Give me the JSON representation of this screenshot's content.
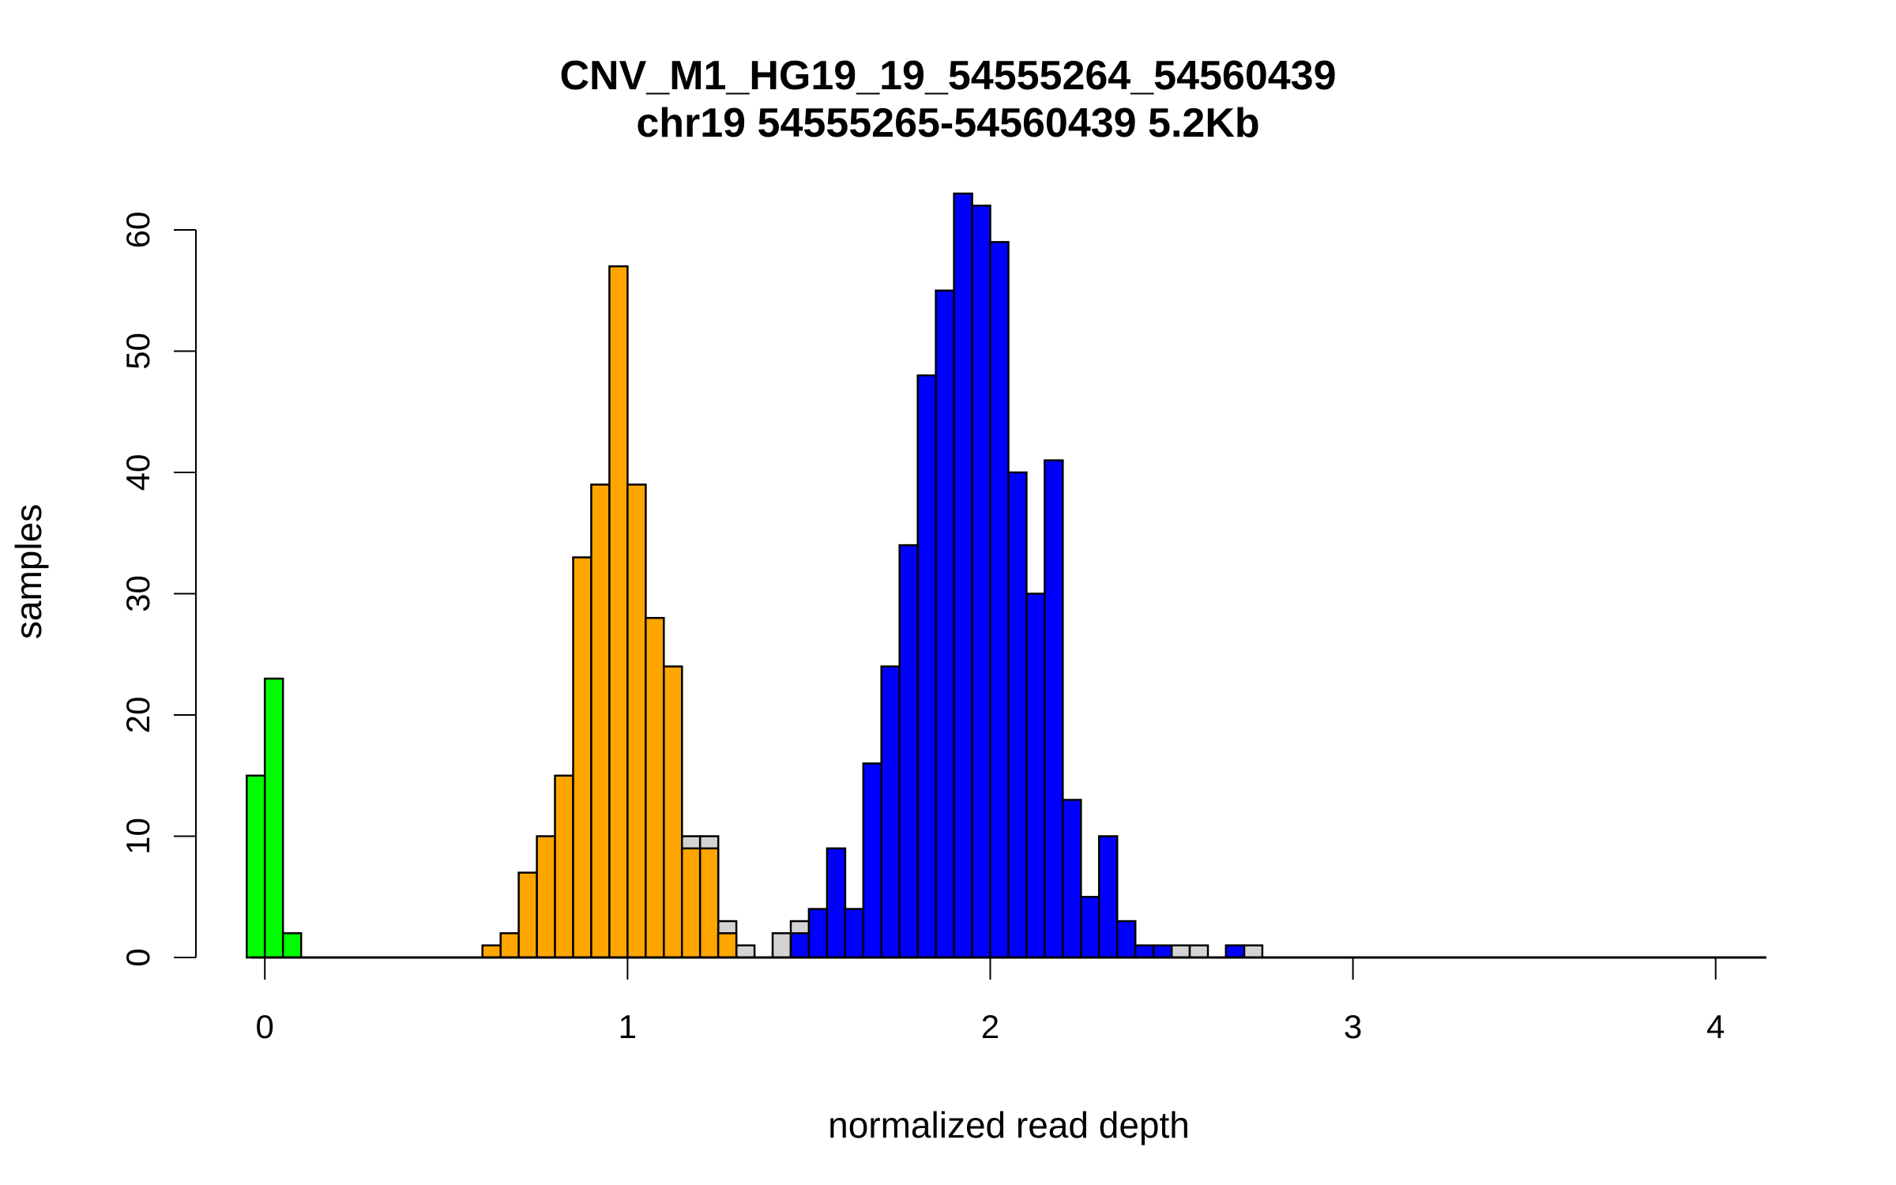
{
  "chart_data": {
    "type": "bar",
    "title": "CNV_M1_HG19_19_54555264_54560439",
    "subtitle": "chr19 54555265-54560439 5.2Kb",
    "xlabel": "normalized read depth",
    "ylabel": "samples",
    "xlim": [
      -0.19,
      4.14
    ],
    "ylim": [
      0,
      63
    ],
    "x_ticks": [
      "0",
      "1",
      "2",
      "3",
      "4"
    ],
    "y_ticks": [
      "0",
      "10",
      "20",
      "30",
      "40",
      "50",
      "60"
    ],
    "bin_width": 0.05,
    "grid": false,
    "legend": "none",
    "colors": {
      "green": "#00ff00",
      "orange": "#ffa500",
      "blue": "#0000ff",
      "gray": "#d3d3d3",
      "outline": "#000000"
    },
    "series": [
      {
        "color": "#d3d3d3",
        "bins": [
          {
            "x0": 1.15,
            "x1": 1.2,
            "count": 10
          },
          {
            "x0": 1.2,
            "x1": 1.25,
            "count": 10
          },
          {
            "x0": 1.25,
            "x1": 1.3,
            "count": 3
          },
          {
            "x0": 1.3,
            "x1": 1.35,
            "count": 1
          },
          {
            "x0": 1.4,
            "x1": 1.45,
            "count": 2
          },
          {
            "x0": 1.45,
            "x1": 1.5,
            "count": 3
          },
          {
            "x0": 2.5,
            "x1": 2.55,
            "count": 1
          },
          {
            "x0": 2.55,
            "x1": 2.6,
            "count": 1
          },
          {
            "x0": 2.65,
            "x1": 2.7,
            "count": 1
          },
          {
            "x0": 2.7,
            "x1": 2.75,
            "count": 1
          }
        ]
      },
      {
        "color": "#00ff00",
        "bins": [
          {
            "x0": -0.05,
            "x1": 0.0,
            "count": 15
          },
          {
            "x0": 0.0,
            "x1": 0.05,
            "count": 23
          },
          {
            "x0": 0.05,
            "x1": 0.1,
            "count": 2
          }
        ]
      },
      {
        "color": "#ffa500",
        "bins": [
          {
            "x0": 0.6,
            "x1": 0.65,
            "count": 1
          },
          {
            "x0": 0.65,
            "x1": 0.7,
            "count": 2
          },
          {
            "x0": 0.7,
            "x1": 0.75,
            "count": 7
          },
          {
            "x0": 0.75,
            "x1": 0.8,
            "count": 10
          },
          {
            "x0": 0.8,
            "x1": 0.85,
            "count": 15
          },
          {
            "x0": 0.85,
            "x1": 0.9,
            "count": 33
          },
          {
            "x0": 0.9,
            "x1": 0.95,
            "count": 39
          },
          {
            "x0": 0.95,
            "x1": 1.0,
            "count": 57
          },
          {
            "x0": 1.0,
            "x1": 1.05,
            "count": 39
          },
          {
            "x0": 1.05,
            "x1": 1.1,
            "count": 28
          },
          {
            "x0": 1.1,
            "x1": 1.15,
            "count": 24
          },
          {
            "x0": 1.15,
            "x1": 1.2,
            "count": 9
          },
          {
            "x0": 1.2,
            "x1": 1.25,
            "count": 9
          },
          {
            "x0": 1.25,
            "x1": 1.3,
            "count": 2
          }
        ]
      },
      {
        "color": "#0000ff",
        "bins": [
          {
            "x0": 1.45,
            "x1": 1.5,
            "count": 2
          },
          {
            "x0": 1.5,
            "x1": 1.55,
            "count": 4
          },
          {
            "x0": 1.55,
            "x1": 1.6,
            "count": 9
          },
          {
            "x0": 1.6,
            "x1": 1.65,
            "count": 4
          },
          {
            "x0": 1.65,
            "x1": 1.7,
            "count": 16
          },
          {
            "x0": 1.7,
            "x1": 1.75,
            "count": 24
          },
          {
            "x0": 1.75,
            "x1": 1.8,
            "count": 34
          },
          {
            "x0": 1.8,
            "x1": 1.85,
            "count": 48
          },
          {
            "x0": 1.85,
            "x1": 1.9,
            "count": 55
          },
          {
            "x0": 1.9,
            "x1": 1.95,
            "count": 63
          },
          {
            "x0": 1.95,
            "x1": 2.0,
            "count": 62
          },
          {
            "x0": 2.0,
            "x1": 2.05,
            "count": 59
          },
          {
            "x0": 2.05,
            "x1": 2.1,
            "count": 40
          },
          {
            "x0": 2.1,
            "x1": 2.15,
            "count": 30
          },
          {
            "x0": 2.15,
            "x1": 2.2,
            "count": 41
          },
          {
            "x0": 2.2,
            "x1": 2.25,
            "count": 13
          },
          {
            "x0": 2.25,
            "x1": 2.3,
            "count": 5
          },
          {
            "x0": 2.3,
            "x1": 2.35,
            "count": 10
          },
          {
            "x0": 2.35,
            "x1": 2.4,
            "count": 3
          },
          {
            "x0": 2.4,
            "x1": 2.45,
            "count": 1
          },
          {
            "x0": 2.45,
            "x1": 2.5,
            "count": 1
          },
          {
            "x0": 2.65,
            "x1": 2.7,
            "count": 1
          }
        ]
      }
    ]
  }
}
